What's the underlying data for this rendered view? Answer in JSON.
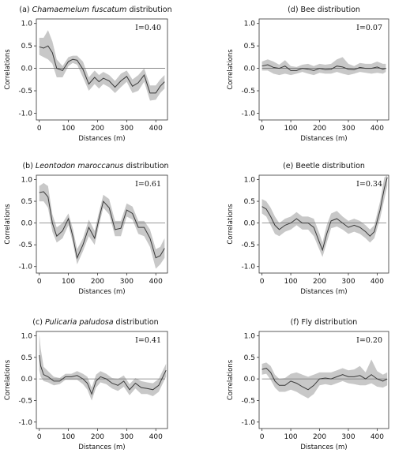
{
  "figure": {
    "xlabel": "Distances (m)",
    "ylabel": "Correlations"
  },
  "chart_data": [
    {
      "type": "line",
      "title_prefix": "(a) ",
      "title_italic": "Chamaemelum fuscatum",
      "title_suffix": " distribution",
      "annotation": "I=0.40",
      "xlabel": "Distances (m)",
      "ylabel": "Correlations",
      "xlim": [
        -10,
        440
      ],
      "ylim": [
        -1.15,
        1.1
      ],
      "xticks": [
        0,
        100,
        200,
        300,
        400
      ],
      "yticks": [
        1.0,
        0.5,
        0.0,
        -0.5,
        -1.0
      ],
      "ytick_labels": [
        "1.0",
        "0.5",
        "0.0",
        "-0.5",
        "-1.0"
      ],
      "series": [
        {
          "x": [
            0,
            15,
            30,
            45,
            60,
            80,
            100,
            115,
            130,
            150,
            170,
            190,
            205,
            220,
            240,
            260,
            280,
            300,
            320,
            340,
            360,
            380,
            400,
            415,
            430
          ],
          "y": [
            0.48,
            0.45,
            0.5,
            0.35,
            0.0,
            -0.05,
            0.15,
            0.2,
            0.18,
            -0.02,
            -0.35,
            -0.2,
            -0.3,
            -0.22,
            -0.28,
            -0.42,
            -0.28,
            -0.18,
            -0.4,
            -0.32,
            -0.15,
            -0.55,
            -0.55,
            -0.4,
            -0.3
          ],
          "lower": [
            0.3,
            0.25,
            0.2,
            0.1,
            -0.2,
            -0.2,
            0.05,
            0.12,
            0.08,
            -0.2,
            -0.5,
            -0.35,
            -0.45,
            -0.35,
            -0.42,
            -0.55,
            -0.42,
            -0.3,
            -0.55,
            -0.5,
            -0.3,
            -0.72,
            -0.7,
            -0.55,
            -0.45
          ],
          "upper": [
            0.68,
            0.68,
            0.85,
            0.6,
            0.2,
            0.05,
            0.25,
            0.28,
            0.28,
            0.15,
            -0.2,
            -0.05,
            -0.15,
            -0.08,
            -0.15,
            -0.28,
            -0.12,
            -0.05,
            -0.25,
            -0.15,
            0.0,
            -0.38,
            -0.38,
            -0.25,
            -0.15
          ]
        }
      ]
    },
    {
      "type": "line",
      "title_prefix": "(d) ",
      "title_italic": "",
      "title_suffix": "Bee distribution",
      "annotation": "I=0.07",
      "xlabel": "Distances (m)",
      "ylabel": "Correlations",
      "xlim": [
        -10,
        440
      ],
      "ylim": [
        -1.15,
        1.1
      ],
      "xticks": [
        0,
        100,
        200,
        300,
        400
      ],
      "yticks": [
        1.0,
        0.5,
        0.0,
        -0.5,
        -1.0
      ],
      "ytick_labels": [
        "1.0",
        "0.5",
        "0.0",
        "-0.5",
        "-1.0"
      ],
      "series": [
        {
          "x": [
            0,
            20,
            40,
            60,
            80,
            100,
            120,
            140,
            160,
            180,
            200,
            220,
            240,
            260,
            280,
            300,
            320,
            340,
            360,
            380,
            400,
            420,
            430
          ],
          "y": [
            0.05,
            0.08,
            0.02,
            0.0,
            0.05,
            -0.05,
            -0.05,
            0.0,
            -0.02,
            -0.05,
            0.0,
            -0.03,
            -0.02,
            0.05,
            0.03,
            -0.02,
            -0.03,
            0.02,
            0.0,
            0.0,
            0.03,
            -0.02,
            0.0
          ],
          "lower": [
            -0.05,
            -0.05,
            -0.12,
            -0.15,
            -0.12,
            -0.15,
            -0.12,
            -0.08,
            -0.12,
            -0.15,
            -0.1,
            -0.12,
            -0.12,
            -0.08,
            -0.12,
            -0.15,
            -0.12,
            -0.08,
            -0.1,
            -0.12,
            -0.1,
            -0.12,
            -0.08
          ],
          "upper": [
            0.15,
            0.2,
            0.15,
            0.08,
            0.18,
            0.05,
            0.03,
            0.08,
            0.1,
            0.05,
            0.1,
            0.08,
            0.1,
            0.2,
            0.25,
            0.1,
            0.05,
            0.12,
            0.1,
            0.1,
            0.15,
            0.1,
            0.1
          ]
        }
      ]
    },
    {
      "type": "line",
      "title_prefix": "(b) ",
      "title_italic": "Leontodon maroccanus",
      "title_suffix": " distribution",
      "annotation": "I=0.61",
      "xlabel": "Distances (m)",
      "ylabel": "Correlations",
      "xlim": [
        -10,
        440
      ],
      "ylim": [
        -1.15,
        1.1
      ],
      "xticks": [
        0,
        100,
        200,
        300,
        400
      ],
      "yticks": [
        1.0,
        0.5,
        0.0,
        -0.5,
        -1.0
      ],
      "ytick_labels": [
        "1.0",
        "0.5",
        "0.0",
        "-0.5",
        "-1.0"
      ],
      "series": [
        {
          "x": [
            0,
            15,
            30,
            45,
            60,
            80,
            100,
            115,
            130,
            150,
            170,
            190,
            205,
            220,
            240,
            260,
            280,
            300,
            320,
            340,
            360,
            380,
            400,
            415,
            430
          ],
          "y": [
            0.7,
            0.72,
            0.6,
            0.0,
            -0.3,
            -0.18,
            0.1,
            -0.3,
            -0.8,
            -0.5,
            -0.1,
            -0.35,
            0.1,
            0.5,
            0.35,
            -0.15,
            -0.12,
            0.3,
            0.22,
            -0.1,
            -0.1,
            -0.35,
            -0.8,
            -0.75,
            -0.58
          ],
          "lower": [
            0.5,
            0.5,
            0.35,
            -0.2,
            -0.45,
            -0.35,
            -0.05,
            -0.45,
            -0.95,
            -0.65,
            -0.3,
            -0.5,
            -0.05,
            0.35,
            0.2,
            -0.3,
            -0.3,
            0.15,
            0.08,
            -0.25,
            -0.3,
            -0.55,
            -1.05,
            -0.95,
            -0.8
          ],
          "upper": [
            0.85,
            0.92,
            0.85,
            0.2,
            -0.1,
            0.0,
            0.22,
            -0.12,
            -0.6,
            -0.35,
            0.08,
            -0.18,
            0.25,
            0.65,
            0.55,
            0.05,
            0.05,
            0.45,
            0.38,
            0.05,
            0.05,
            -0.15,
            -0.6,
            -0.55,
            -0.35
          ]
        }
      ]
    },
    {
      "type": "line",
      "title_prefix": "(e) ",
      "title_italic": "",
      "title_suffix": "Beetle distribution",
      "annotation": "I=0.34",
      "xlabel": "Distances (m)",
      "ylabel": "Correlations",
      "xlim": [
        -10,
        440
      ],
      "ylim": [
        -1.15,
        1.1
      ],
      "xticks": [
        0,
        100,
        200,
        300,
        400
      ],
      "yticks": [
        1.0,
        0.5,
        0.0,
        -0.5,
        -1.0
      ],
      "ytick_labels": [
        "1.0",
        "0.5",
        "0.0",
        "-0.5",
        "-1.0"
      ],
      "series": [
        {
          "x": [
            0,
            15,
            30,
            45,
            60,
            80,
            100,
            120,
            140,
            160,
            180,
            200,
            210,
            225,
            240,
            260,
            280,
            300,
            320,
            340,
            360,
            375,
            390,
            410,
            425,
            435
          ],
          "y": [
            0.38,
            0.32,
            0.15,
            -0.05,
            -0.15,
            -0.05,
            0.0,
            0.1,
            0.0,
            0.0,
            -0.1,
            -0.45,
            -0.62,
            -0.25,
            0.05,
            0.1,
            0.0,
            -0.1,
            -0.05,
            -0.1,
            -0.2,
            -0.3,
            -0.2,
            0.3,
            0.8,
            1.05
          ],
          "lower": [
            0.22,
            0.15,
            -0.05,
            -0.25,
            -0.3,
            -0.2,
            -0.15,
            -0.05,
            -0.15,
            -0.15,
            -0.3,
            -0.62,
            -0.78,
            -0.45,
            -0.12,
            -0.08,
            -0.15,
            -0.25,
            -0.2,
            -0.25,
            -0.35,
            -0.45,
            -0.35,
            0.1,
            0.55,
            0.85
          ],
          "upper": [
            0.55,
            0.5,
            0.35,
            0.15,
            0.0,
            0.1,
            0.15,
            0.25,
            0.15,
            0.15,
            0.1,
            -0.25,
            -0.45,
            -0.05,
            0.22,
            0.28,
            0.15,
            0.05,
            0.1,
            0.05,
            -0.05,
            -0.15,
            -0.05,
            0.5,
            1.05,
            1.1
          ]
        }
      ]
    },
    {
      "type": "line",
      "title_prefix": "(c) ",
      "title_italic": "Pulicaria paludosa",
      "title_suffix": " distribution",
      "annotation": "I=0.41",
      "xlabel": "Distances (m)",
      "ylabel": "Correlations",
      "xlim": [
        -10,
        440
      ],
      "ylim": [
        -1.15,
        1.1
      ],
      "xticks": [
        0,
        100,
        200,
        300,
        400
      ],
      "yticks": [
        1.0,
        0.5,
        0.0,
        -0.5,
        -1.0
      ],
      "ytick_labels": [
        "1.0",
        "0.5",
        "0.0",
        "-0.5",
        "-1.0"
      ],
      "series": [
        {
          "x": [
            0,
            5,
            15,
            30,
            50,
            70,
            90,
            110,
            130,
            150,
            165,
            180,
            195,
            210,
            230,
            250,
            270,
            290,
            310,
            330,
            350,
            370,
            390,
            410,
            435
          ],
          "y": [
            0.55,
            0.3,
            0.1,
            0.05,
            -0.05,
            -0.05,
            0.05,
            0.05,
            0.08,
            0.0,
            -0.1,
            -0.35,
            -0.05,
            0.05,
            0.0,
            -0.1,
            -0.15,
            -0.05,
            -0.25,
            -0.1,
            -0.2,
            -0.22,
            -0.25,
            -0.15,
            0.2
          ],
          "lower": [
            0.2,
            0.05,
            -0.05,
            -0.08,
            -0.15,
            -0.12,
            -0.02,
            -0.02,
            -0.02,
            -0.12,
            -0.25,
            -0.5,
            -0.2,
            -0.08,
            -0.12,
            -0.22,
            -0.28,
            -0.18,
            -0.38,
            -0.22,
            -0.35,
            -0.35,
            -0.4,
            -0.3,
            0.05
          ],
          "upper": [
            1.05,
            0.7,
            0.28,
            0.18,
            0.05,
            0.02,
            0.12,
            0.12,
            0.18,
            0.12,
            0.05,
            -0.2,
            0.1,
            0.18,
            0.12,
            0.02,
            0.0,
            0.08,
            -0.12,
            0.02,
            -0.05,
            -0.08,
            -0.1,
            0.0,
            0.35
          ]
        }
      ]
    },
    {
      "type": "line",
      "title_prefix": "(f) ",
      "title_italic": "",
      "title_suffix": "Fly distribution",
      "annotation": "I=0.20",
      "xlabel": "Distances (m)",
      "ylabel": "Correlations",
      "xlim": [
        -10,
        440
      ],
      "ylim": [
        -1.15,
        1.1
      ],
      "xticks": [
        0,
        100,
        200,
        300,
        400
      ],
      "yticks": [
        1.0,
        0.5,
        0.0,
        -0.5,
        -1.0
      ],
      "ytick_labels": [
        "1.0",
        "0.5",
        "0.0",
        "-0.5",
        "-1.0"
      ],
      "series": [
        {
          "x": [
            0,
            15,
            30,
            45,
            60,
            80,
            100,
            120,
            140,
            160,
            180,
            200,
            220,
            240,
            260,
            280,
            300,
            320,
            340,
            360,
            380,
            400,
            420,
            435
          ],
          "y": [
            0.22,
            0.25,
            0.15,
            -0.05,
            -0.15,
            -0.15,
            -0.05,
            -0.1,
            -0.18,
            -0.25,
            -0.15,
            0.0,
            0.02,
            0.0,
            0.05,
            0.1,
            0.05,
            0.05,
            0.08,
            0.0,
            0.1,
            0.0,
            -0.05,
            0.0
          ],
          "lower": [
            0.1,
            0.12,
            -0.02,
            -0.2,
            -0.3,
            -0.3,
            -0.25,
            -0.3,
            -0.38,
            -0.45,
            -0.35,
            -0.15,
            -0.12,
            -0.15,
            -0.1,
            -0.05,
            -0.1,
            -0.12,
            -0.15,
            -0.15,
            -0.1,
            -0.18,
            -0.2,
            -0.15
          ],
          "upper": [
            0.35,
            0.38,
            0.3,
            0.1,
            0.0,
            0.02,
            0.12,
            0.15,
            0.1,
            0.05,
            0.1,
            0.15,
            0.15,
            0.15,
            0.2,
            0.25,
            0.2,
            0.22,
            0.3,
            0.15,
            0.45,
            0.18,
            0.1,
            0.15
          ]
        }
      ]
    }
  ]
}
